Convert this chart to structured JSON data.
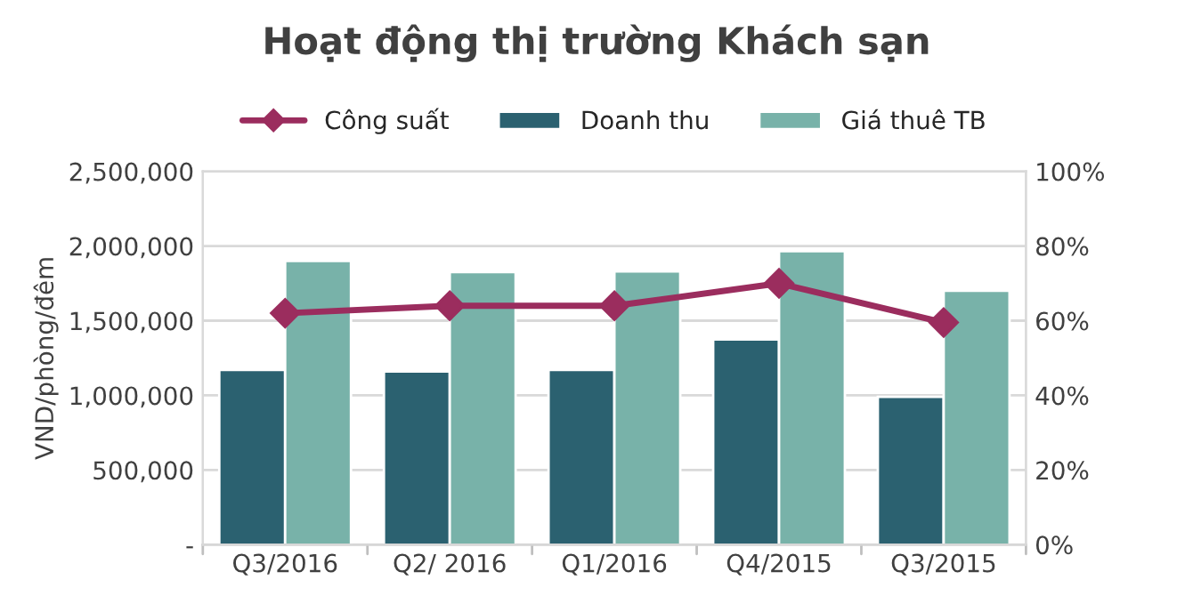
{
  "chart_data": {
    "type": "bar",
    "title": "Hoạt động thị trường Khách sạn",
    "categories": [
      "Q3/2016",
      "Q2/ 2016",
      "Q1/2016",
      "Q4/2015",
      "Q3/2015"
    ],
    "series": [
      {
        "name": "Công suất",
        "type": "line",
        "axis": "y2",
        "color": "#9b2d5e",
        "marker": "diamond",
        "line_style": "solid",
        "values": [
          62,
          64,
          64,
          70,
          59.5
        ]
      },
      {
        "name": "Doanh thu",
        "color": "#2b6170",
        "values": [
          1170000,
          1160000,
          1170000,
          1375000,
          990000
        ]
      },
      {
        "name": "Giá thuê TB",
        "color": "#78b2a9",
        "values": [
          1900000,
          1825000,
          1830000,
          1965000,
          1700000
        ]
      }
    ],
    "ylabel": "VND/phòng/đêm",
    "ylim": [
      0,
      2500000
    ],
    "yticks": [
      {
        "value": 0,
        "label": "-"
      },
      {
        "value": 500000,
        "label": "500,000"
      },
      {
        "value": 1000000,
        "label": "1,000,000"
      },
      {
        "value": 1500000,
        "label": "1,500,000"
      },
      {
        "value": 2000000,
        "label": "2,000,000"
      },
      {
        "value": 2500000,
        "label": "2,500,000"
      }
    ],
    "y2lim": [
      0,
      100
    ],
    "y2ticks": [
      {
        "value": 0,
        "label": "0%"
      },
      {
        "value": 20,
        "label": "20%"
      },
      {
        "value": 40,
        "label": "40%"
      },
      {
        "value": 60,
        "label": "60%"
      },
      {
        "value": 80,
        "label": "80%"
      },
      {
        "value": 100,
        "label": "100%"
      }
    ],
    "grid": "y",
    "legend": "top"
  }
}
